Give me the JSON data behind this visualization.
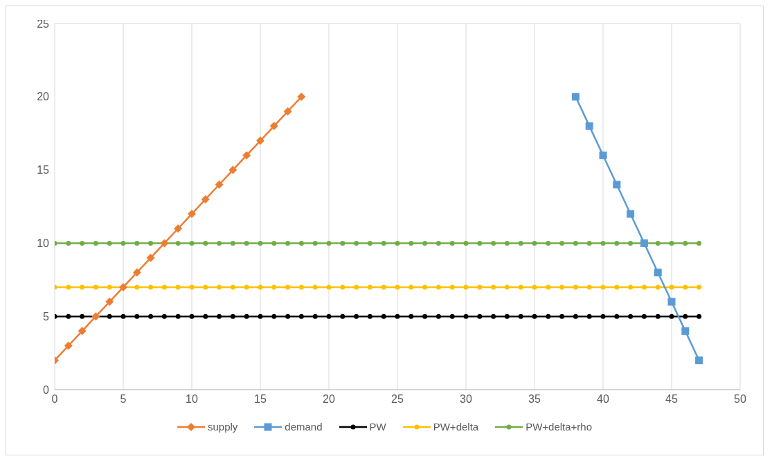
{
  "chart_data": {
    "type": "line",
    "xlim": [
      0,
      50
    ],
    "xticks": [
      0,
      5,
      10,
      15,
      20,
      25,
      30,
      35,
      40,
      45,
      50
    ],
    "ylim": [
      0,
      25
    ],
    "yticks": [
      0,
      5,
      10,
      15,
      20,
      25
    ],
    "grid": true,
    "legend": "bottom",
    "series": [
      {
        "name": "supply",
        "color": "#ed7d31",
        "marker": "diamond",
        "x": [
          0,
          1,
          2,
          3,
          4,
          5,
          6,
          7,
          8,
          9,
          10,
          11,
          12,
          13,
          14,
          15,
          16,
          17,
          18
        ],
        "values": [
          2,
          3,
          4,
          5,
          6,
          7,
          8,
          9,
          10,
          11,
          12,
          13,
          14,
          15,
          16,
          17,
          18,
          19,
          20
        ]
      },
      {
        "name": "demand",
        "color": "#5b9bd5",
        "marker": "square",
        "x": [
          38,
          39,
          40,
          41,
          42,
          43,
          44,
          45,
          46,
          47
        ],
        "values": [
          20,
          18,
          16,
          14,
          12,
          10,
          8,
          6,
          4,
          2
        ]
      },
      {
        "name": "PW",
        "color": "#000000",
        "marker": "circle",
        "x": [
          0,
          1,
          2,
          3,
          4,
          5,
          6,
          7,
          8,
          9,
          10,
          11,
          12,
          13,
          14,
          15,
          16,
          17,
          18,
          19,
          20,
          21,
          22,
          23,
          24,
          25,
          26,
          27,
          28,
          29,
          30,
          31,
          32,
          33,
          34,
          35,
          36,
          37,
          38,
          39,
          40,
          41,
          42,
          43,
          44,
          45,
          46,
          47
        ],
        "values": [
          5,
          5,
          5,
          5,
          5,
          5,
          5,
          5,
          5,
          5,
          5,
          5,
          5,
          5,
          5,
          5,
          5,
          5,
          5,
          5,
          5,
          5,
          5,
          5,
          5,
          5,
          5,
          5,
          5,
          5,
          5,
          5,
          5,
          5,
          5,
          5,
          5,
          5,
          5,
          5,
          5,
          5,
          5,
          5,
          5,
          5,
          5,
          5
        ]
      },
      {
        "name": "PW+delta",
        "color": "#ffc000",
        "marker": "circle",
        "x": [
          0,
          1,
          2,
          3,
          4,
          5,
          6,
          7,
          8,
          9,
          10,
          11,
          12,
          13,
          14,
          15,
          16,
          17,
          18,
          19,
          20,
          21,
          22,
          23,
          24,
          25,
          26,
          27,
          28,
          29,
          30,
          31,
          32,
          33,
          34,
          35,
          36,
          37,
          38,
          39,
          40,
          41,
          42,
          43,
          44,
          45,
          46,
          47
        ],
        "values": [
          7,
          7,
          7,
          7,
          7,
          7,
          7,
          7,
          7,
          7,
          7,
          7,
          7,
          7,
          7,
          7,
          7,
          7,
          7,
          7,
          7,
          7,
          7,
          7,
          7,
          7,
          7,
          7,
          7,
          7,
          7,
          7,
          7,
          7,
          7,
          7,
          7,
          7,
          7,
          7,
          7,
          7,
          7,
          7,
          7,
          7,
          7,
          7
        ]
      },
      {
        "name": "PW+delta+rho",
        "color": "#70ad47",
        "marker": "circle",
        "x": [
          0,
          1,
          2,
          3,
          4,
          5,
          6,
          7,
          8,
          9,
          10,
          11,
          12,
          13,
          14,
          15,
          16,
          17,
          18,
          19,
          20,
          21,
          22,
          23,
          24,
          25,
          26,
          27,
          28,
          29,
          30,
          31,
          32,
          33,
          34,
          35,
          36,
          37,
          38,
          39,
          40,
          41,
          42,
          43,
          44,
          45,
          46,
          47
        ],
        "values": [
          10,
          10,
          10,
          10,
          10,
          10,
          10,
          10,
          10,
          10,
          10,
          10,
          10,
          10,
          10,
          10,
          10,
          10,
          10,
          10,
          10,
          10,
          10,
          10,
          10,
          10,
          10,
          10,
          10,
          10,
          10,
          10,
          10,
          10,
          10,
          10,
          10,
          10,
          10,
          10,
          10,
          10,
          10,
          10,
          10,
          10,
          10,
          10
        ]
      }
    ]
  }
}
